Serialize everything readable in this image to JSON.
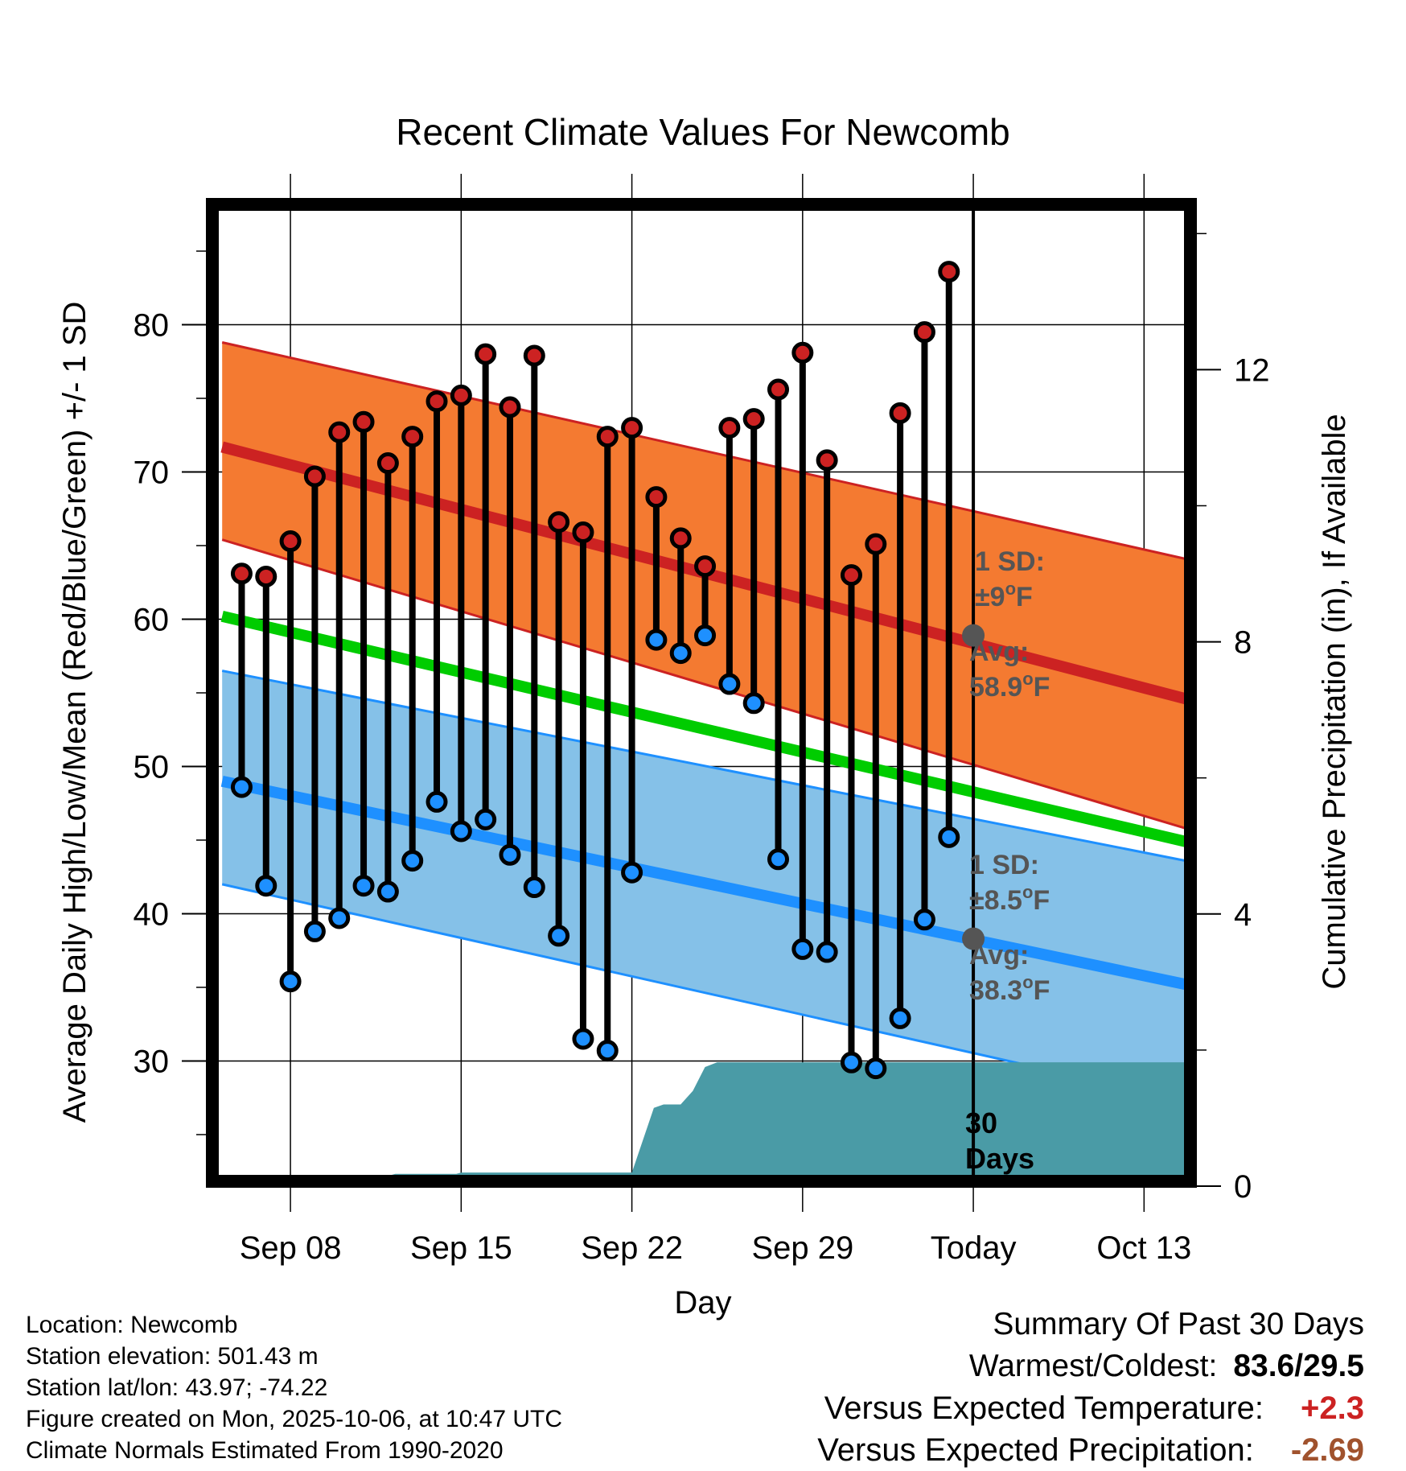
{
  "chart_data": {
    "type": "line",
    "title": "Recent Climate Values For Newcomb",
    "xlabel": "Day",
    "ylabel": "Average Daily High/Low/Mean (Red/Blue/Green) +/- 1 SD",
    "y2label": "Cumulative Precipitation (in), If Available",
    "ylim": [
      21.5,
      88.5
    ],
    "y2lim": [
      0,
      14.5
    ],
    "yticks": [
      30,
      40,
      50,
      60,
      70,
      80
    ],
    "y2ticks": [
      0,
      4,
      8,
      12
    ],
    "xlim": [
      -3.4,
      37.1
    ],
    "xticks": [
      {
        "day": 0,
        "label": "Sep 08"
      },
      {
        "day": 7,
        "label": "Sep 15"
      },
      {
        "day": 14,
        "label": "Sep 22"
      },
      {
        "day": 21,
        "label": "Sep 29"
      },
      {
        "day": 28,
        "label": "Today"
      },
      {
        "day": 35,
        "label": "Oct 13"
      }
    ],
    "today_day": 28,
    "normals": {
      "day_range": [
        -2.8,
        36.7
      ],
      "high_avg": [
        71.7,
        54.6
      ],
      "high_upper": [
        78.8,
        64.1
      ],
      "high_lower": [
        65.4,
        45.8
      ],
      "mean_avg": [
        60.2,
        44.9
      ],
      "low_avg": [
        49.0,
        35.2
      ],
      "low_upper": [
        56.5,
        43.6
      ],
      "low_lower": [
        42.0,
        27.3
      ]
    },
    "series": [
      {
        "name": "Daily High",
        "color": "#cc2222",
        "values": [
          63.1,
          62.9,
          65.3,
          69.7,
          72.7,
          73.4,
          70.6,
          72.4,
          74.8,
          75.2,
          78.0,
          74.4,
          77.9,
          66.6,
          65.9,
          72.4,
          73.0,
          68.3,
          65.5,
          63.6,
          73.0,
          73.6,
          75.6,
          78.1,
          70.8,
          63.0,
          65.1,
          74.0,
          79.5,
          83.6
        ]
      },
      {
        "name": "Daily Low",
        "color": "#1e90ff",
        "values": [
          48.6,
          41.9,
          35.4,
          38.8,
          39.7,
          41.9,
          41.5,
          43.6,
          47.6,
          45.6,
          46.4,
          44.0,
          41.8,
          38.5,
          31.5,
          30.7,
          42.8,
          58.6,
          57.7,
          58.9,
          55.6,
          54.3,
          43.7,
          37.6,
          37.4,
          29.9,
          29.5,
          32.9,
          39.6,
          45.2
        ]
      }
    ],
    "days": [
      -2,
      -1,
      0,
      1,
      2,
      3,
      4,
      5,
      6,
      7,
      8,
      9,
      10,
      11,
      12,
      13,
      14,
      15,
      16,
      17,
      18,
      19,
      20,
      21,
      22,
      23,
      24,
      25,
      26,
      27
    ],
    "precipitation": {
      "color": "#4a9ba6",
      "points": [
        [
          -3.4,
          0.05
        ],
        [
          -2.3,
          0.05
        ],
        [
          -2.0,
          0.15
        ],
        [
          4.0,
          0.15
        ],
        [
          4.3,
          0.18
        ],
        [
          6.8,
          0.18
        ],
        [
          7.0,
          0.2
        ],
        [
          14.0,
          0.2
        ],
        [
          14.9,
          1.15
        ],
        [
          15.3,
          1.2
        ],
        [
          16.0,
          1.2
        ],
        [
          16.5,
          1.4
        ],
        [
          17.0,
          1.75
        ],
        [
          17.5,
          1.82
        ],
        [
          37.1,
          1.82
        ]
      ]
    },
    "annotations": {
      "high_sd": {
        "line1": "1 SD:",
        "line2": "±9",
        "unit": "F"
      },
      "high_avg": {
        "line1": "Avg:",
        "line2": "58.9",
        "unit": "F",
        "value": 58.9
      },
      "low_sd": {
        "line1": "1 SD:",
        "line2": "±8.5",
        "unit": "F"
      },
      "low_avg": {
        "line1": "Avg:",
        "line2": "38.3",
        "unit": "F",
        "value": 38.3
      },
      "days_label": {
        "line1": "30",
        "line2": "Days"
      }
    },
    "colors": {
      "high_band": "#f47a31",
      "high_line": "#cc2222",
      "mean_line": "#00cc00",
      "low_band": "#85c1e8",
      "low_line": "#1e90ff",
      "low_edge": "#1e90ff",
      "grid": "#000000"
    }
  },
  "info": {
    "location": "Location: Newcomb",
    "elevation": "Station elevation: 501.43 m",
    "latlon": "Station lat/lon: 43.97; -74.22",
    "created": "Figure created on Mon, 2025-10-06, at 10:47 UTC",
    "normals": "Climate Normals Estimated From 1990-2020"
  },
  "summary": {
    "heading": "Summary Of Past 30 Days",
    "warmest_label": "Warmest/Coldest:",
    "warmest_value": "83.6/29.5",
    "temp_label": "Versus Expected Temperature:",
    "temp_value": "+2.3",
    "temp_color": "#cc2222",
    "precip_label": "Versus Expected Precipitation:",
    "precip_value": "-2.69",
    "precip_color": "#a0522d"
  }
}
